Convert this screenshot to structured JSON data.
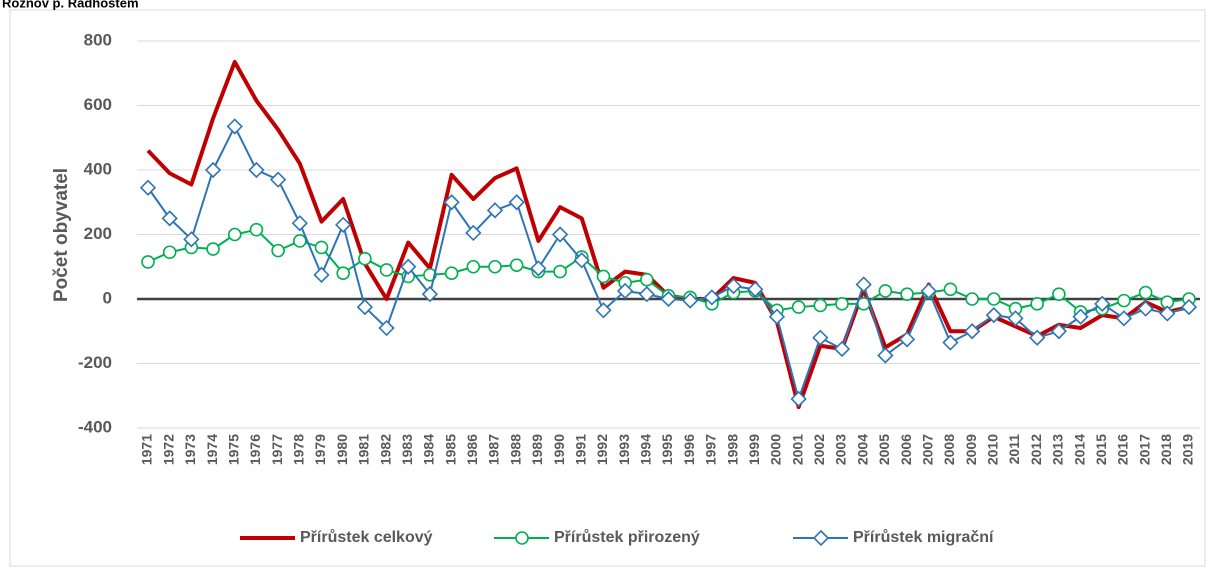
{
  "chart_data": {
    "type": "line",
    "title": "Rožnov p. Radhoštěm",
    "y_label": "Počet obyvatel",
    "categories": [
      "1971",
      "1972",
      "1973",
      "1974",
      "1975",
      "1976",
      "1977",
      "1978",
      "1979",
      "1980",
      "1981",
      "1982",
      "1983",
      "1984",
      "1985",
      "1986",
      "1987",
      "1988",
      "1989",
      "1990",
      "1991",
      "1992",
      "1993",
      "1994",
      "1995",
      "1996",
      "1997",
      "1998",
      "1999",
      "2000",
      "2001",
      "2002",
      "2003",
      "2004",
      "2005",
      "2006",
      "2007",
      "2008",
      "2009",
      "2010",
      "2011",
      "2012",
      "2013",
      "2014",
      "2015",
      "2016",
      "2017",
      "2018",
      "2019"
    ],
    "series": [
      {
        "name": "Přírůstek celkový",
        "color": "#c00000",
        "marker": "none",
        "values": [
          460,
          390,
          355,
          560,
          735,
          615,
          525,
          420,
          240,
          310,
          110,
          0,
          175,
          95,
          385,
          310,
          375,
          405,
          180,
          285,
          250,
          35,
          85,
          75,
          10,
          0,
          0,
          65,
          50,
          -70,
          -335,
          -145,
          -155,
          30,
          -150,
          -110,
          45,
          -100,
          -100,
          -55,
          -85,
          -115,
          -80,
          -90,
          -50,
          -60,
          -10,
          -40,
          -25
        ]
      },
      {
        "name": "Přírůstek přirozený",
        "color": "#00b050",
        "marker": "circle",
        "values": [
          115,
          145,
          160,
          155,
          200,
          215,
          150,
          180,
          160,
          80,
          125,
          90,
          70,
          75,
          80,
          100,
          100,
          105,
          85,
          85,
          130,
          70,
          50,
          60,
          10,
          5,
          -15,
          20,
          25,
          -35,
          -25,
          -20,
          -15,
          -15,
          25,
          15,
          20,
          30,
          0,
          0,
          -30,
          -15,
          15,
          -40,
          -30,
          -5,
          20,
          -10,
          0
        ]
      },
      {
        "name": "Přírůstek migrační",
        "color": "#2e75b6",
        "marker": "diamond",
        "values": [
          345,
          250,
          185,
          400,
          535,
          400,
          370,
          235,
          75,
          230,
          -25,
          -90,
          100,
          15,
          300,
          205,
          275,
          300,
          95,
          200,
          120,
          -35,
          25,
          15,
          0,
          -5,
          5,
          40,
          30,
          -55,
          -310,
          -120,
          -155,
          45,
          -175,
          -125,
          25,
          -135,
          -100,
          -50,
          -60,
          -120,
          -100,
          -55,
          -15,
          -60,
          -30,
          -45,
          -25
        ]
      }
    ],
    "ylim": [
      -400,
      800
    ],
    "yticks": [
      -400,
      -200,
      0,
      200,
      400,
      600,
      800
    ],
    "grid": true,
    "legend": "bottom"
  }
}
